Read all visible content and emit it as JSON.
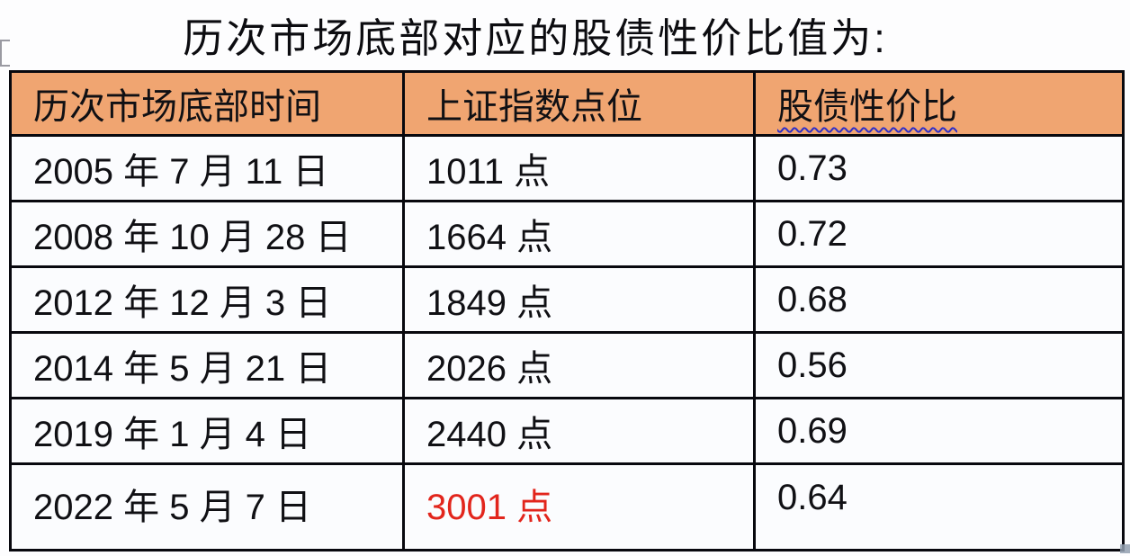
{
  "title": "历次市场底部对应的股债性价比值为:",
  "table": {
    "headers": {
      "date": "历次市场底部时间",
      "index": "上证指数点位",
      "ratio": "股债性价比"
    },
    "rows": [
      {
        "date": "2005 年 7 月 11 日",
        "index": "1011 点",
        "ratio": "0.73"
      },
      {
        "date": "2008 年 10 月 28 日",
        "index": "1664 点",
        "ratio": "0.72"
      },
      {
        "date": "2012 年 12 月 3 日",
        "index": "1849 点",
        "ratio": "0.68"
      },
      {
        "date": "2014 年 5 月 21 日",
        "index": "2026 点",
        "ratio": "0.56"
      },
      {
        "date": "2019 年 1 月 4 日",
        "index": "2440 点",
        "ratio": "0.69"
      },
      {
        "date": "2022 年 5 月 7 日",
        "index": "3001 点",
        "ratio": "0.64"
      }
    ],
    "highlighted_cell": "3001 点"
  },
  "colors": {
    "header_bg": "#F0A571",
    "highlight_red": "#E2251C",
    "squiggle_blue": "#2E2EC8",
    "border": "#08080E"
  }
}
